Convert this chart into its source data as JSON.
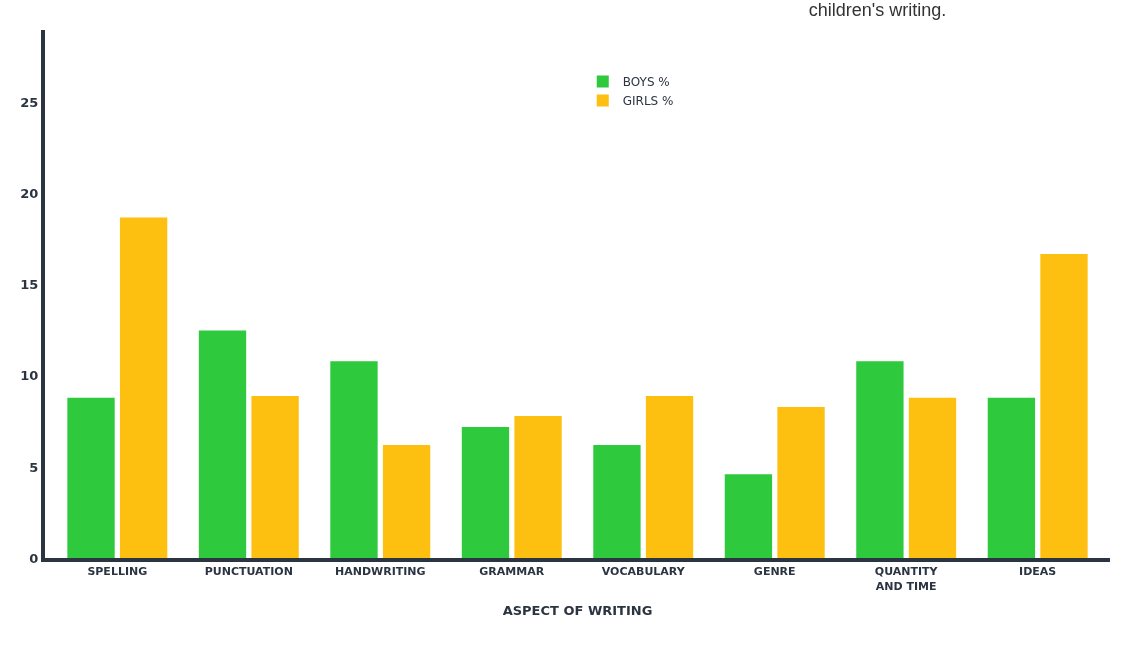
{
  "chart_data": {
    "type": "bar",
    "title": "children's writing.",
    "xlabel": "ASPECT OF WRITING",
    "categories": [
      "SPELLING",
      "PUNCTUATION",
      "HANDWRITING",
      "GRAMMAR",
      "VOCABULARY",
      "GENRE",
      "QUANTITY AND TIME",
      "IDEAS"
    ],
    "series": [
      {
        "name": "BOYS %",
        "color": "#2ec93c",
        "values": [
          8.8,
          12.5,
          10.8,
          7.2,
          6.2,
          4.6,
          10.8,
          8.8
        ]
      },
      {
        "name": "GIRLS %",
        "color": "#fdbf10",
        "values": [
          18.7,
          8.9,
          6.2,
          7.8,
          8.9,
          8.3,
          8.8,
          16.7
        ]
      }
    ],
    "ylim": [
      0,
      29
    ],
    "yticks": [
      0,
      5,
      10,
      15,
      20,
      25
    ],
    "legend": "top"
  }
}
